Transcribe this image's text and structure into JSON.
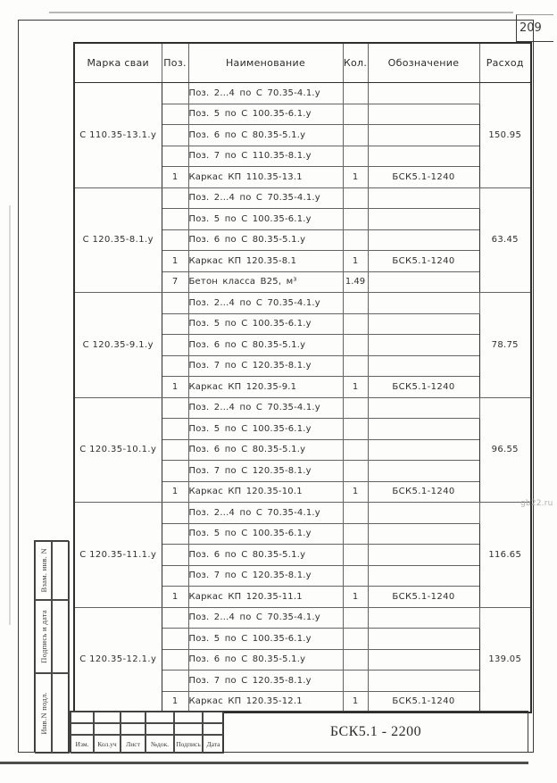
{
  "page": {
    "number": "209",
    "watermark": "gb22.ru",
    "side_labels": [
      "Взам. инв. N",
      "Подпись и дата",
      "Инв.N подл."
    ],
    "title_block": {
      "document_code": "БСК5.1 - 2200",
      "revision_labels": [
        "Изм.",
        "Кол.уч",
        "Лист",
        "№док.",
        "Подпись",
        "Дата"
      ]
    }
  },
  "table": {
    "headers": [
      "Марка сваи",
      "Поз.",
      "Наименование",
      "Кол.",
      "Обозначение",
      "Расход"
    ],
    "groups": [
      {
        "mark": "С 110.35-13.1.у",
        "rashod": "150.95",
        "rows": [
          {
            "pos": "",
            "name": "Поз. 2...4 по С 70.35-4.1.у",
            "qty": "",
            "designation": ""
          },
          {
            "pos": "",
            "name": "Поз. 5 по С 100.35-6.1.у",
            "qty": "",
            "designation": ""
          },
          {
            "pos": "",
            "name": "Поз. 6 по С 80.35-5.1.у",
            "qty": "",
            "designation": ""
          },
          {
            "pos": "",
            "name": "Поз. 7 по С 110.35-8.1.у",
            "qty": "",
            "designation": ""
          },
          {
            "pos": "1",
            "name": "Каркас КП 110.35-13.1",
            "qty": "1",
            "designation": "БСК5.1-1240"
          }
        ]
      },
      {
        "mark": "С 120.35-8.1.у",
        "rashod": "63.45",
        "rows": [
          {
            "pos": "",
            "name": "Поз. 2...4 по С 70.35-4.1.у",
            "qty": "",
            "designation": ""
          },
          {
            "pos": "",
            "name": "Поз. 5 по С 100.35-6.1.у",
            "qty": "",
            "designation": ""
          },
          {
            "pos": "",
            "name": "Поз. 6 по С 80.35-5.1.у",
            "qty": "",
            "designation": ""
          },
          {
            "pos": "1",
            "name": "Каркас КП 120.35-8.1",
            "qty": "1",
            "designation": "БСК5.1-1240"
          },
          {
            "pos": "7",
            "name": "Бетон класса В25, м³",
            "qty": "1.49",
            "designation": ""
          }
        ]
      },
      {
        "mark": "С 120.35-9.1.у",
        "rashod": "78.75",
        "rows": [
          {
            "pos": "",
            "name": "Поз. 2...4 по С 70.35-4.1.у",
            "qty": "",
            "designation": ""
          },
          {
            "pos": "",
            "name": "Поз. 5 по С 100.35-6.1.у",
            "qty": "",
            "designation": ""
          },
          {
            "pos": "",
            "name": "Поз. 6 по С 80.35-5.1.у",
            "qty": "",
            "designation": ""
          },
          {
            "pos": "",
            "name": "Поз. 7 по С 120.35-8.1.у",
            "qty": "",
            "designation": ""
          },
          {
            "pos": "1",
            "name": "Каркас КП 120.35-9.1",
            "qty": "1",
            "designation": "БСК5.1-1240"
          }
        ]
      },
      {
        "mark": "С 120.35-10.1.у",
        "rashod": "96.55",
        "rows": [
          {
            "pos": "",
            "name": "Поз. 2...4 по С 70.35-4.1.у",
            "qty": "",
            "designation": ""
          },
          {
            "pos": "",
            "name": "Поз. 5 по С 100.35-6.1.у",
            "qty": "",
            "designation": ""
          },
          {
            "pos": "",
            "name": "Поз. 6 по С 80.35-5.1.у",
            "qty": "",
            "designation": ""
          },
          {
            "pos": "",
            "name": "Поз. 7 по С 120.35-8.1.у",
            "qty": "",
            "designation": ""
          },
          {
            "pos": "1",
            "name": "Каркас КП 120.35-10.1",
            "qty": "1",
            "designation": "БСК5.1-1240"
          }
        ]
      },
      {
        "mark": "С 120.35-11.1.у",
        "rashod": "116.65",
        "rows": [
          {
            "pos": "",
            "name": "Поз. 2...4 по С 70.35-4.1.у",
            "qty": "",
            "designation": ""
          },
          {
            "pos": "",
            "name": "Поз. 5 по С 100.35-6.1.у",
            "qty": "",
            "designation": ""
          },
          {
            "pos": "",
            "name": "Поз. 6 по С 80.35-5.1.у",
            "qty": "",
            "designation": ""
          },
          {
            "pos": "",
            "name": "Поз. 7 по С 120.35-8.1.у",
            "qty": "",
            "designation": ""
          },
          {
            "pos": "1",
            "name": "Каркас КП 120.35-11.1",
            "qty": "1",
            "designation": "БСК5.1-1240"
          }
        ]
      },
      {
        "mark": "С 120.35-12.1.у",
        "rashod": "139.05",
        "rows": [
          {
            "pos": "",
            "name": "Поз. 2...4 по С 70.35-4.1.у",
            "qty": "",
            "designation": ""
          },
          {
            "pos": "",
            "name": "Поз. 5 по С 100.35-6.1.у",
            "qty": "",
            "designation": ""
          },
          {
            "pos": "",
            "name": "Поз. 6 по С 80.35-5.1.у",
            "qty": "",
            "designation": ""
          },
          {
            "pos": "",
            "name": "Поз. 7 по С 120.35-8.1.у",
            "qty": "",
            "designation": ""
          },
          {
            "pos": "1",
            "name": "Каркас КП 120.35-12.1",
            "qty": "1",
            "designation": "БСК5.1-1240"
          }
        ]
      }
    ]
  }
}
